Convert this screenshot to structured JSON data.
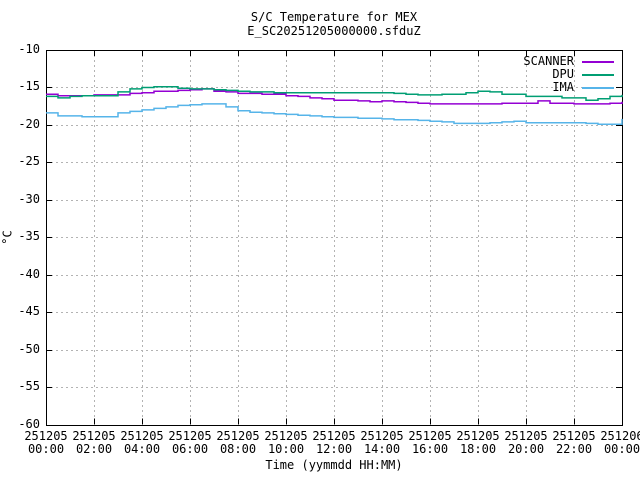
{
  "title": "S/C Temperature for MEX",
  "subtitle": "E_SC20251205000000.sfduZ",
  "chart_data": {
    "type": "line",
    "title": "S/C Temperature for MEX",
    "subtitle": "E_SC20251205000000.sfduZ",
    "xlabel": "Time (yymmdd HH:MM)",
    "ylabel": "°C",
    "ylim": [
      -60,
      -10
    ],
    "xlim_hours": [
      0,
      24
    ],
    "grid": true,
    "grid_color": "#b3b3b3",
    "border_color": "#000000",
    "background_color": "#ffffff",
    "legend_position": "top-right-inside",
    "y_ticks": [
      -10,
      -15,
      -20,
      -25,
      -30,
      -35,
      -40,
      -45,
      -50,
      -55,
      -60
    ],
    "x_tick_step_hours": 2,
    "x_tick_labels": [
      {
        "date": "251205",
        "time": "00:00"
      },
      {
        "date": "251205",
        "time": "02:00"
      },
      {
        "date": "251205",
        "time": "04:00"
      },
      {
        "date": "251205",
        "time": "06:00"
      },
      {
        "date": "251205",
        "time": "08:00"
      },
      {
        "date": "251205",
        "time": "10:00"
      },
      {
        "date": "251205",
        "time": "12:00"
      },
      {
        "date": "251205",
        "time": "14:00"
      },
      {
        "date": "251205",
        "time": "16:00"
      },
      {
        "date": "251205",
        "time": "18:00"
      },
      {
        "date": "251205",
        "time": "20:00"
      },
      {
        "date": "251205",
        "time": "22:00"
      },
      {
        "date": "251206",
        "time": "00:00"
      }
    ],
    "x_hours": [
      0,
      0.5,
      1,
      1.5,
      2,
      2.5,
      3,
      3.5,
      4,
      4.5,
      5,
      5.5,
      6,
      6.5,
      7,
      7.5,
      8,
      8.5,
      9,
      9.5,
      10,
      10.5,
      11,
      11.5,
      12,
      12.5,
      13,
      13.5,
      14,
      14.5,
      15,
      15.5,
      16,
      16.5,
      17,
      17.5,
      18,
      18.5,
      19,
      19.5,
      20,
      20.5,
      21,
      21.5,
      22,
      22.5,
      23,
      23.5,
      24
    ],
    "series": [
      {
        "name": "SCANNER",
        "color": "#9400d3",
        "values": [
          -15.9,
          -16.1,
          -16.1,
          -16.1,
          -16.0,
          -16.0,
          -16.0,
          -15.8,
          -15.7,
          -15.5,
          -15.5,
          -15.4,
          -15.3,
          -15.2,
          -15.5,
          -15.6,
          -15.8,
          -15.8,
          -15.9,
          -15.9,
          -16.1,
          -16.2,
          -16.4,
          -16.5,
          -16.7,
          -16.7,
          -16.8,
          -16.9,
          -16.8,
          -16.9,
          -17.0,
          -17.1,
          -17.2,
          -17.2,
          -17.2,
          -17.2,
          -17.2,
          -17.2,
          -17.1,
          -17.1,
          -17.1,
          -16.8,
          -17.1,
          -17.1,
          -17.2,
          -17.2,
          -17.2,
          -17.1,
          -16.9
        ]
      },
      {
        "name": "DPU",
        "color": "#009e73",
        "values": [
          -16.2,
          -16.4,
          -16.2,
          -16.1,
          -16.1,
          -16.1,
          -15.6,
          -15.2,
          -15.0,
          -14.9,
          -14.9,
          -15.1,
          -15.2,
          -15.2,
          -15.3,
          -15.4,
          -15.5,
          -15.6,
          -15.6,
          -15.7,
          -15.7,
          -15.7,
          -15.7,
          -15.7,
          -15.7,
          -15.7,
          -15.7,
          -15.7,
          -15.7,
          -15.8,
          -15.9,
          -16.0,
          -16.0,
          -15.9,
          -15.9,
          -15.7,
          -15.5,
          -15.6,
          -15.9,
          -15.9,
          -16.2,
          -16.2,
          -16.2,
          -16.4,
          -16.4,
          -16.7,
          -16.5,
          -16.2,
          -16.0
        ]
      },
      {
        "name": "IMA",
        "color": "#56b4e9",
        "values": [
          -18.4,
          -18.8,
          -18.8,
          -18.9,
          -18.9,
          -18.9,
          -18.4,
          -18.2,
          -18.0,
          -17.8,
          -17.6,
          -17.4,
          -17.3,
          -17.2,
          -17.2,
          -17.6,
          -18.1,
          -18.3,
          -18.4,
          -18.5,
          -18.6,
          -18.7,
          -18.8,
          -18.9,
          -19.0,
          -19.0,
          -19.1,
          -19.1,
          -19.2,
          -19.3,
          -19.3,
          -19.4,
          -19.5,
          -19.6,
          -19.8,
          -19.8,
          -19.8,
          -19.7,
          -19.6,
          -19.5,
          -19.7,
          -19.7,
          -19.7,
          -19.7,
          -19.7,
          -19.8,
          -19.9,
          -19.9,
          -19.2
        ]
      }
    ]
  }
}
